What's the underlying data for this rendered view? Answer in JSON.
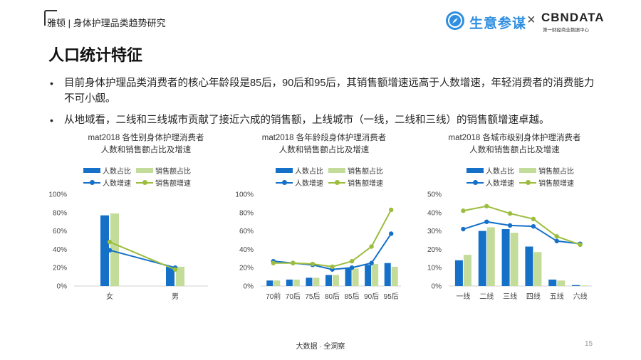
{
  "header": {
    "brand": "雅顿 | 身体护理品类趋势研究"
  },
  "logos": {
    "left_name": "生意参谋",
    "separator": "×",
    "right_name": "CBNDATA",
    "right_sub": "第一财经商业数据中心"
  },
  "page_title": "人口统计特征",
  "bullets": [
    "目前身体护理品类消费者的核心年龄段是85后，90后和95后，其销售额增速远高于人数增速，年轻消费者的消费能力不可小觑。",
    "从地域看，二线和三线城市贡献了接近六成的销售额，上线城市（一线，二线和三线）的销售额增速卓越。"
  ],
  "legend_labels": [
    "人数占比",
    "销售额占比",
    "人数增速",
    "销售额增速"
  ],
  "colors": {
    "bar1": "#1570c8",
    "bar2": "#c4dc9a",
    "line1": "#1570c8",
    "line2": "#9cbd3e"
  },
  "chart_data": [
    {
      "type": "bar",
      "title_line1": "mat2018 各性别身体护理消费者",
      "title_line2": "人数和销售额占比及增速",
      "categories": [
        "女",
        "男"
      ],
      "ylim": [
        0,
        100
      ],
      "yticks": [
        "0%",
        "20%",
        "40%",
        "60%",
        "80%",
        "100%"
      ],
      "series": [
        {
          "name": "人数占比",
          "kind": "bar",
          "values": [
            77,
            21
          ]
        },
        {
          "name": "销售额占比",
          "kind": "bar",
          "values": [
            79,
            21
          ]
        },
        {
          "name": "人数增速",
          "kind": "line",
          "values": [
            39,
            20
          ]
        },
        {
          "name": "销售额增速",
          "kind": "line",
          "values": [
            48,
            18
          ]
        }
      ]
    },
    {
      "type": "bar",
      "title_line1": "mat2018 各年龄段身体护理消费者",
      "title_line2": "人数和销售额占比及增速",
      "categories": [
        "70前",
        "70后",
        "75后",
        "80后",
        "85后",
        "90后",
        "95后"
      ],
      "ylim": [
        0,
        100
      ],
      "yticks": [
        "0%",
        "20%",
        "40%",
        "60%",
        "80%",
        "100%"
      ],
      "series": [
        {
          "name": "人数占比",
          "kind": "bar",
          "values": [
            6,
            7,
            9,
            12,
            19,
            23,
            25
          ]
        },
        {
          "name": "销售额占比",
          "kind": "bar",
          "values": [
            6,
            7,
            9,
            12,
            19,
            24,
            21
          ]
        },
        {
          "name": "人数增速",
          "kind": "line",
          "values": [
            27,
            25,
            23,
            18,
            20,
            25,
            57
          ]
        },
        {
          "name": "销售额增速",
          "kind": "line",
          "values": [
            25,
            25,
            24,
            21,
            27,
            43,
            83
          ]
        }
      ]
    },
    {
      "type": "bar",
      "title_line1": "mat2018 各城市级别身体护理消费者",
      "title_line2": "人数和销售额占比及增速",
      "categories": [
        "一线",
        "二线",
        "三线",
        "四线",
        "五线",
        "六线"
      ],
      "ylim": [
        0,
        50
      ],
      "yticks": [
        "0%",
        "10%",
        "20%",
        "30%",
        "40%",
        "50%"
      ],
      "series": [
        {
          "name": "人数占比",
          "kind": "bar",
          "values": [
            14,
            30,
            31,
            21.5,
            3.5,
            0.5
          ]
        },
        {
          "name": "销售额占比",
          "kind": "bar",
          "values": [
            17,
            32,
            29,
            18.5,
            3,
            0.3
          ]
        },
        {
          "name": "人数增速",
          "kind": "line",
          "values": [
            31,
            35,
            33,
            32.5,
            24.5,
            23
          ]
        },
        {
          "name": "销售额增速",
          "kind": "line",
          "values": [
            41,
            43.5,
            39.5,
            36.5,
            27,
            22.5
          ]
        }
      ]
    }
  ],
  "footer": "大数据 · 全洞察",
  "page_number": "15"
}
